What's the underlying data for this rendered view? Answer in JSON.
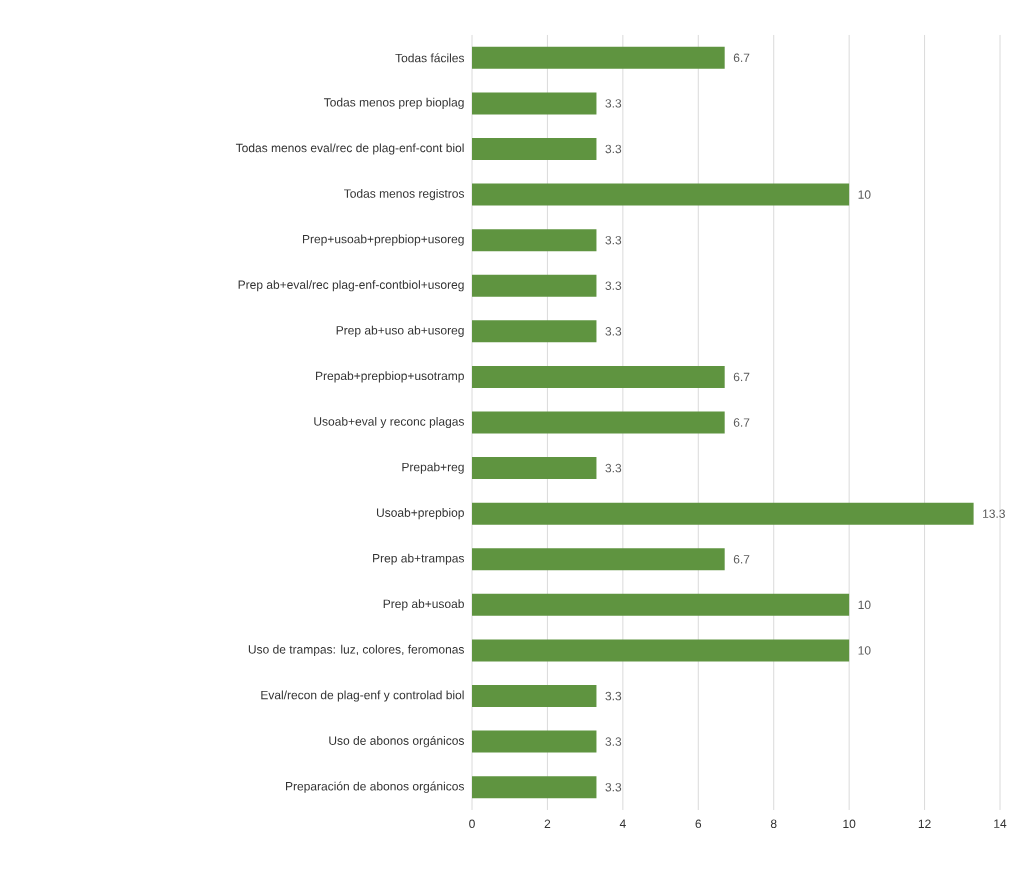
{
  "chart_data": {
    "type": "bar",
    "orientation": "horizontal",
    "categories": [
      "Todas fáciles",
      "Todas menos prep bioplag",
      "Todas menos eval/rec de plag-enf-cont biol",
      "Todas menos registros",
      "Prep+usoab+prepbiop+usoreg",
      "Prep ab+eval/rec plag-enf-contbiol+usoreg",
      "Prep ab+uso ab+usoreg",
      "Prepab+prepbiop+usotramp",
      "Usoab+eval y reconc plagas",
      "Prepab+reg",
      "Usoab+prepbiop",
      "Prep ab+trampas",
      "Prep ab+usoab",
      "Uso de trampas: luz, colores, feromonas",
      "Eval/recon de plag-enf y controlad biol",
      "Uso de abonos orgánicos",
      "Preparación de abonos orgánicos"
    ],
    "values": [
      6.7,
      3.3,
      3.3,
      10,
      3.3,
      3.3,
      3.3,
      6.7,
      6.7,
      3.3,
      13.3,
      6.7,
      10,
      10,
      3.3,
      3.3,
      3.3
    ],
    "color": "#5f9440",
    "xlim": [
      0,
      14
    ],
    "xticks": [
      0,
      2,
      4,
      6,
      8,
      10,
      12,
      14
    ],
    "grid": "x",
    "data_labels": true
  }
}
